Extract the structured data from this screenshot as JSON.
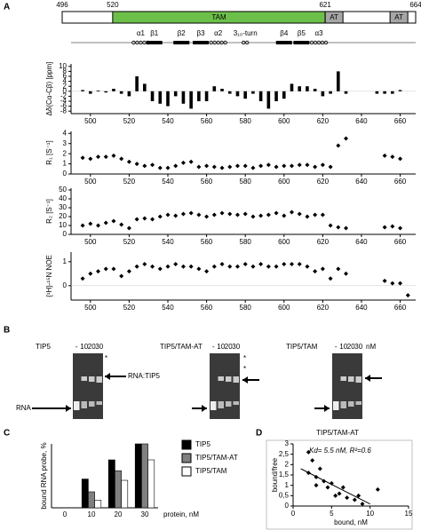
{
  "panel_labels": [
    "A",
    "B",
    "C",
    "D"
  ],
  "domain_map": {
    "positions": [
      496,
      520,
      621,
      664
    ],
    "domains": [
      "TAM",
      "AT",
      "AT"
    ],
    "secondary_structure": [
      "α1",
      "β1",
      "β2",
      "β3",
      "α2",
      "3₁₀-turn",
      "β4",
      "β5",
      "α3"
    ]
  },
  "gels": [
    {
      "title": "TIP5",
      "lanes": [
        "-",
        "10",
        "20",
        "30"
      ],
      "labels": [
        "*",
        "RNA:TIP5",
        "RNA"
      ]
    },
    {
      "title": "TIP5/TAM-AT",
      "lanes": [
        "-",
        "10",
        "20",
        "30"
      ],
      "labels": [
        "*",
        "*"
      ]
    },
    {
      "title": "TIP5/TAM",
      "lanes": [
        "-",
        "10",
        "20",
        "30"
      ],
      "unit": "nM"
    }
  ],
  "chart_data": [
    {
      "type": "bar",
      "ylabel": "Δδ(Cα-Cβ) [ppm]",
      "color": "#000000",
      "x": [
        496,
        500,
        504,
        508,
        512,
        516,
        520,
        524,
        528,
        532,
        536,
        540,
        544,
        548,
        552,
        556,
        560,
        564,
        568,
        572,
        576,
        580,
        584,
        588,
        592,
        596,
        600,
        604,
        608,
        612,
        616,
        620,
        624,
        628,
        632,
        636,
        640,
        644,
        648,
        652,
        656,
        660,
        664
      ],
      "values": [
        0.5,
        -1,
        0.3,
        -0.5,
        1,
        -1,
        -2,
        6,
        3,
        -4,
        -5,
        -6,
        -2,
        -5,
        -7,
        -4,
        -4,
        2,
        1,
        -1,
        -2,
        -3,
        -1,
        -4,
        -7,
        -4,
        -3,
        3,
        2,
        2,
        1,
        -2,
        -1,
        8,
        -1,
        null,
        null,
        null,
        -1,
        -1,
        -1,
        0.5,
        null
      ],
      "xlim": [
        490,
        668
      ],
      "xticks": [
        500,
        520,
        540,
        560,
        580,
        600,
        620,
        640,
        660
      ],
      "ylim": [
        -9,
        11
      ],
      "yticks": [
        -8,
        -6,
        -4,
        -2,
        0,
        2,
        4,
        6,
        8,
        10
      ]
    },
    {
      "type": "scatter",
      "ylabel": "R₁ [S⁻¹]",
      "color": "#000000",
      "x": [
        496,
        500,
        504,
        508,
        512,
        516,
        520,
        524,
        528,
        532,
        536,
        540,
        544,
        548,
        552,
        556,
        560,
        564,
        568,
        572,
        576,
        580,
        584,
        588,
        592,
        596,
        600,
        604,
        608,
        612,
        616,
        620,
        624,
        628,
        632,
        636,
        640,
        644,
        648,
        652,
        656,
        660,
        664
      ],
      "values": [
        1.6,
        1.5,
        1.7,
        1.7,
        1.8,
        1.5,
        1.2,
        1.0,
        0.8,
        0.9,
        0.6,
        0.6,
        0.8,
        1.1,
        1.2,
        0.7,
        0.8,
        0.7,
        0.6,
        0.7,
        0.8,
        0.8,
        0.6,
        0.8,
        0.9,
        0.7,
        0.8,
        0.8,
        0.9,
        0.9,
        0.7,
        0.9,
        0.7,
        2.8,
        3.5,
        null,
        null,
        null,
        null,
        1.8,
        1.7,
        1.5,
        null
      ],
      "xlim": [
        490,
        668
      ],
      "xticks": [
        500,
        520,
        540,
        560,
        580,
        600,
        620,
        640,
        660
      ],
      "ylim": [
        0,
        4.2
      ],
      "yticks": [
        0,
        1,
        2,
        3,
        4
      ]
    },
    {
      "type": "scatter",
      "ylabel": "R₂ [S⁻¹]",
      "color": "#000000",
      "x": [
        496,
        500,
        504,
        508,
        512,
        516,
        520,
        524,
        528,
        532,
        536,
        540,
        544,
        548,
        552,
        556,
        560,
        564,
        568,
        572,
        576,
        580,
        584,
        588,
        592,
        596,
        600,
        604,
        608,
        612,
        616,
        620,
        624,
        628,
        632,
        636,
        640,
        644,
        648,
        652,
        656,
        660,
        664
      ],
      "values": [
        10,
        12,
        10,
        13,
        15,
        11,
        7,
        17,
        18,
        17,
        20,
        22,
        21,
        23,
        24,
        22,
        20,
        22,
        24,
        23,
        22,
        23,
        20,
        21,
        22,
        24,
        21,
        25,
        23,
        20,
        22,
        22,
        10,
        8,
        7,
        null,
        null,
        null,
        null,
        8,
        9,
        7,
        null
      ],
      "xlim": [
        490,
        668
      ],
      "xticks": [
        500,
        520,
        540,
        560,
        580,
        600,
        620,
        640,
        660
      ],
      "ylim": [
        0,
        52
      ],
      "yticks": [
        0,
        10,
        20,
        30,
        40,
        50
      ]
    },
    {
      "type": "scatter",
      "ylabel": "{¹H}-¹⁵N NOE",
      "color": "#000000",
      "x": [
        496,
        500,
        504,
        508,
        512,
        516,
        520,
        524,
        528,
        532,
        536,
        540,
        544,
        548,
        552,
        556,
        560,
        564,
        568,
        572,
        576,
        580,
        584,
        588,
        592,
        596,
        600,
        604,
        608,
        612,
        616,
        620,
        624,
        628,
        632,
        636,
        640,
        644,
        648,
        652,
        656,
        660,
        664
      ],
      "values": [
        0.3,
        0.5,
        0.6,
        0.7,
        0.7,
        0.4,
        0.6,
        0.8,
        0.9,
        0.8,
        0.7,
        0.8,
        0.9,
        0.8,
        0.8,
        0.7,
        0.6,
        0.8,
        0.9,
        0.8,
        0.8,
        0.9,
        0.8,
        0.9,
        0.8,
        0.8,
        0.9,
        0.9,
        0.9,
        0.8,
        0.6,
        0.7,
        0.3,
        0.7,
        0.5,
        null,
        null,
        null,
        null,
        0.2,
        0.1,
        0.1,
        -0.4
      ],
      "xlim": [
        490,
        668
      ],
      "xticks": [
        500,
        520,
        540,
        560,
        580,
        600,
        620,
        640,
        660
      ],
      "ylim": [
        -0.6,
        1.4
      ],
      "yticks": [
        0,
        1
      ]
    },
    {
      "type": "grouped_bar",
      "ylabel": "bound RNA probe, %",
      "xlabel": "protein, nM",
      "categories": [
        "0",
        "10",
        "20",
        "30"
      ],
      "ylim": [
        0,
        100
      ],
      "series": [
        {
          "name": "TIP5",
          "color": "#000000",
          "values": [
            0,
            45,
            75,
            100
          ]
        },
        {
          "name": "TIP5/TAM-AT",
          "color": "#808080",
          "values": [
            0,
            25,
            58,
            100
          ]
        },
        {
          "name": "TIP5/TAM",
          "color": "#ffffff",
          "values": [
            0,
            12,
            43,
            75
          ]
        }
      ]
    },
    {
      "type": "scatter",
      "title": "TIP5/TAM-AT",
      "annotation": "Kd= 5.5  nM, R²=0.6",
      "xlabel": "bound, nM",
      "ylabel": "bound/free",
      "color": "#000000",
      "x": [
        2,
        2.5,
        3,
        2,
        3.5,
        4,
        4.5,
        5,
        6,
        6.5,
        7,
        8,
        8.5,
        9,
        11,
        3,
        5.5
      ],
      "values": [
        2.6,
        2.2,
        1.4,
        1.6,
        1.8,
        1.2,
        0.9,
        1.1,
        0.6,
        0.9,
        0.4,
        0.3,
        0.5,
        0.1,
        0.8,
        1.0,
        0.5
      ],
      "trendline": {
        "x": [
          1,
          10
        ],
        "values": [
          1.8,
          0.1
        ]
      },
      "xlim": [
        0,
        15
      ],
      "xticks": [
        0,
        5,
        10,
        15
      ],
      "ylim": [
        0,
        3
      ],
      "yticks": [
        0,
        {
          "value": 0.5,
          "label": "0,5"
        },
        1,
        {
          "value": 1.5,
          "label": "1,5"
        },
        2,
        {
          "value": 2.5,
          "label": "2,5"
        },
        3
      ]
    }
  ]
}
